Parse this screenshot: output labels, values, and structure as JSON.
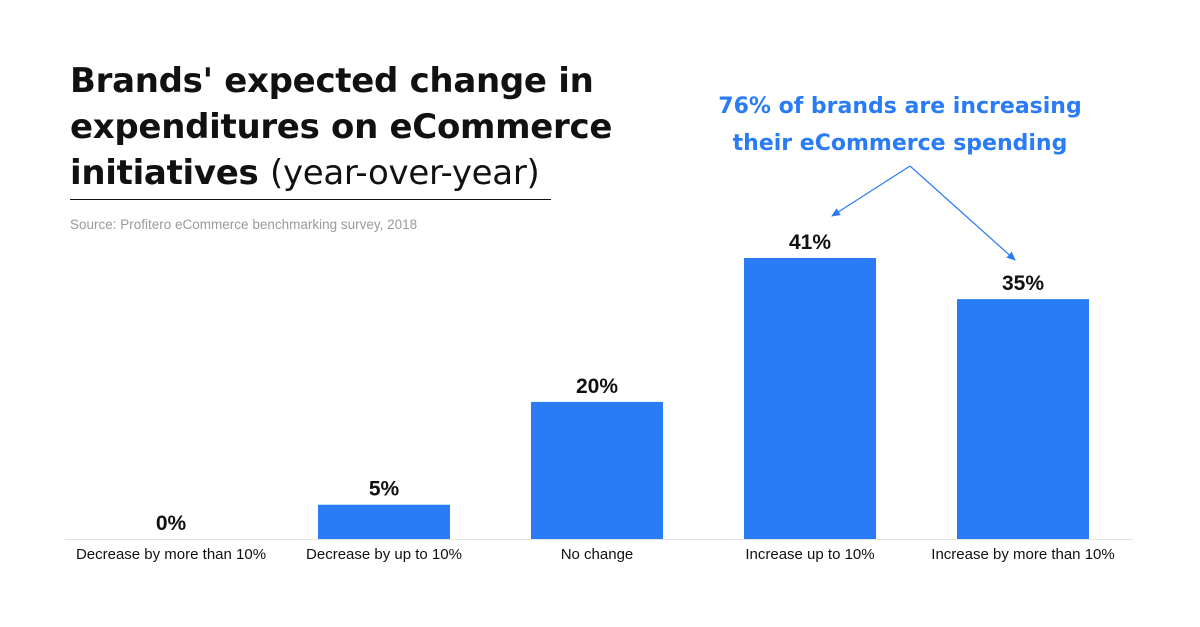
{
  "title": {
    "line1": "Brands' expected change in",
    "line2": "expenditures on eCommerce",
    "line3_bold": "initiatives",
    "line3_regular": "(year-over-year)"
  },
  "source": "Source: Profitero eCommerce benchmarking survey, 2018",
  "callout": {
    "line1": "76% of brands are increasing",
    "line2": "their eCommerce spending",
    "color": "#2a7bf6"
  },
  "chart_data": {
    "type": "bar",
    "categories": [
      "Decrease by more than 10%",
      "Decrease by up to 10%",
      "No change",
      "Increase up to 10%",
      "Increase by more than 10%"
    ],
    "values": [
      0,
      5,
      20,
      41,
      35
    ],
    "value_labels": [
      "0%",
      "5%",
      "20%",
      "41%",
      "35%"
    ],
    "unit": "%",
    "ylim": [
      0,
      41
    ],
    "grid": false,
    "bar_color": "#2a7bf6"
  }
}
